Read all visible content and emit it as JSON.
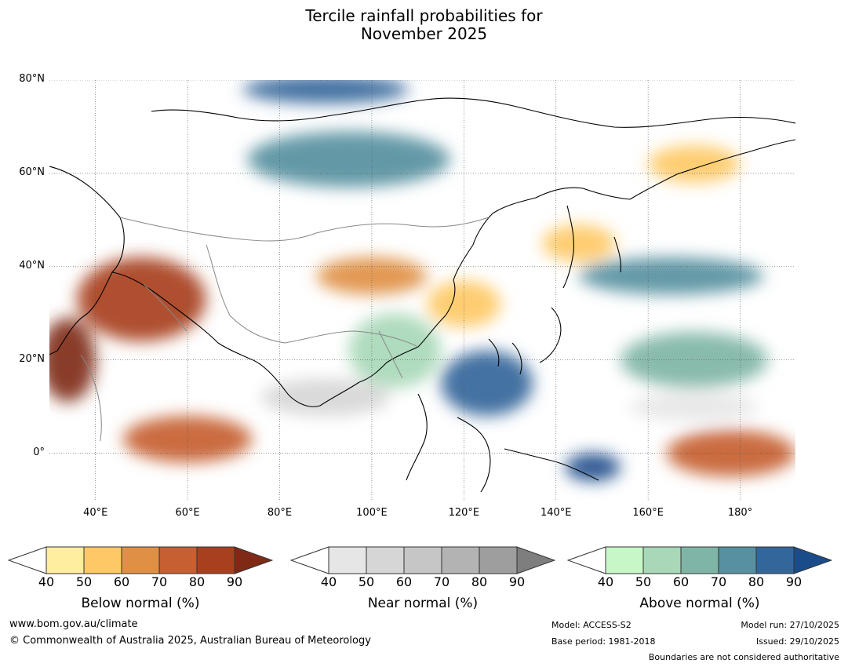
{
  "title_line1": "Tercile rainfall probabilities for",
  "title_line2": "November 2025",
  "map": {
    "lat_labels": [
      "80°N",
      "60°N",
      "40°N",
      "20°N",
      "0°"
    ],
    "lon_labels": [
      "40°E",
      "60°E",
      "80°E",
      "100°E",
      "120°E",
      "140°E",
      "160°E",
      "180°"
    ],
    "lat_range": [
      -10,
      80
    ],
    "lon_range": [
      30,
      192
    ],
    "gridlines": true,
    "regions": [
      {
        "category": "below",
        "level": 80,
        "lon": 50,
        "lat": 33,
        "rx": 14,
        "ry": 9
      },
      {
        "category": "below",
        "level": 90,
        "lon": 34,
        "lat": 20,
        "rx": 6,
        "ry": 9
      },
      {
        "category": "below",
        "level": 70,
        "lon": 60,
        "lat": 3,
        "rx": 14,
        "ry": 5
      },
      {
        "category": "below",
        "level": 60,
        "lon": 100,
        "lat": 38,
        "rx": 12,
        "ry": 4
      },
      {
        "category": "below",
        "level": 70,
        "lon": 178,
        "lat": 0,
        "rx": 14,
        "ry": 5
      },
      {
        "category": "below",
        "level": 50,
        "lon": 120,
        "lat": 32,
        "rx": 8,
        "ry": 5
      },
      {
        "category": "below",
        "level": 50,
        "lon": 145,
        "lat": 45,
        "rx": 8,
        "ry": 4
      },
      {
        "category": "below",
        "level": 50,
        "lon": 170,
        "lat": 62,
        "rx": 10,
        "ry": 4
      },
      {
        "category": "above",
        "level": 70,
        "lon": 95,
        "lat": 63,
        "rx": 22,
        "ry": 6
      },
      {
        "category": "above",
        "level": 80,
        "lon": 90,
        "lat": 78,
        "rx": 18,
        "ry": 3
      },
      {
        "category": "above",
        "level": 80,
        "lon": 125,
        "lat": 15,
        "rx": 10,
        "ry": 7
      },
      {
        "category": "above",
        "level": 70,
        "lon": 165,
        "lat": 38,
        "rx": 20,
        "ry": 4
      },
      {
        "category": "above",
        "level": 60,
        "lon": 170,
        "lat": 20,
        "rx": 16,
        "ry": 6
      },
      {
        "category": "above",
        "level": 90,
        "lon": 148,
        "lat": -3,
        "rx": 6,
        "ry": 3
      },
      {
        "category": "above",
        "level": 50,
        "lon": 105,
        "lat": 22,
        "rx": 10,
        "ry": 8
      },
      {
        "category": "near",
        "level": 50,
        "lon": 90,
        "lat": 12,
        "rx": 14,
        "ry": 4
      },
      {
        "category": "near",
        "level": 40,
        "lon": 170,
        "lat": 10,
        "rx": 14,
        "ry": 3
      }
    ]
  },
  "colorbars": [
    {
      "key": "below",
      "title": "Below normal (%)",
      "ticks": [
        "40",
        "50",
        "60",
        "70",
        "80",
        "90"
      ],
      "colors": [
        "#ffeda0",
        "#fec965",
        "#e09044",
        "#c65f31",
        "#a8401f"
      ],
      "extend_color": "#7f2a16"
    },
    {
      "key": "near",
      "title": "Near normal (%)",
      "ticks": [
        "40",
        "50",
        "60",
        "70",
        "80",
        "90"
      ],
      "colors": [
        "#e6e6e6",
        "#d6d6d6",
        "#c6c6c6",
        "#b3b3b3",
        "#9e9e9e"
      ],
      "extend_color": "#7e7e7e"
    },
    {
      "key": "above",
      "title": "Above normal (%)",
      "ticks": [
        "40",
        "50",
        "60",
        "70",
        "80",
        "90"
      ],
      "colors": [
        "#c7f7c7",
        "#a8d8b8",
        "#7fb5a6",
        "#5790a0",
        "#33669a"
      ],
      "extend_color": "#1b4c8a"
    }
  ],
  "footer": {
    "url": "www.bom.gov.au/climate",
    "copyright": "© Commonwealth of Australia 2025, Australian Bureau of Meteorology",
    "model": "Model: ACCESS-S2",
    "base_period": "Base period: 1981-2018",
    "model_run": "Model run: 27/10/2025",
    "issued": "Issued: 29/10/2025",
    "disclaimer": "Boundaries are not considered authoritative"
  }
}
